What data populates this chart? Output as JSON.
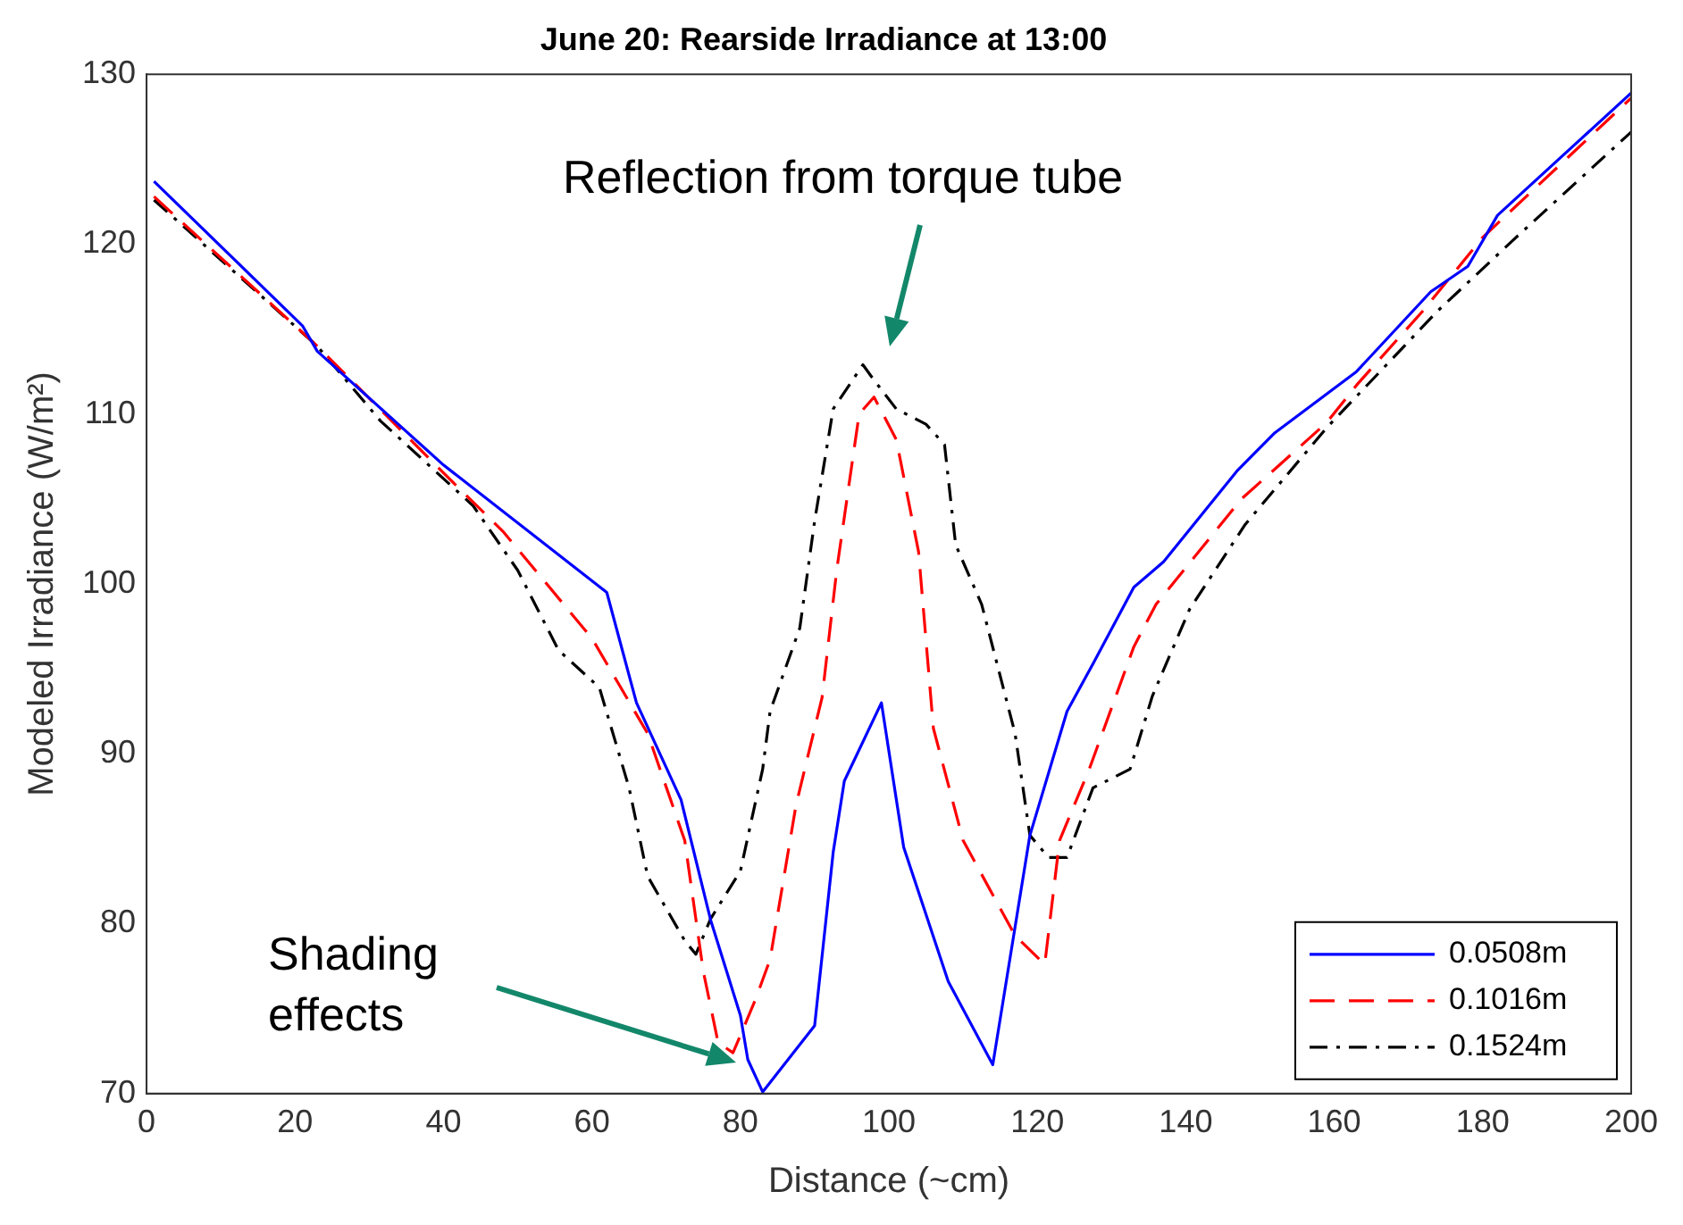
{
  "chart_data": {
    "type": "line",
    "title": "June 20: Rearside Irradiance at 13:00",
    "xlabel": "Distance (~cm)",
    "ylabel": "Modeled Irradiance (W/m²)",
    "xlim": [
      0,
      200
    ],
    "xticks": [
      0,
      20,
      40,
      60,
      80,
      100,
      120,
      140,
      160,
      180,
      200
    ],
    "ylim": [
      70,
      130
    ],
    "yticks": [
      70,
      80,
      90,
      100,
      110,
      120,
      130
    ],
    "grid": false,
    "legend": "bottom right",
    "marker": "none",
    "annotations": [
      "Reflection from torque tube",
      "Shading effects"
    ],
    "series": [
      {
        "name": "0.0508m",
        "color": "#0000ff",
        "line_style": "solid",
        "x": [
          1,
          21,
          23,
          40,
          62,
          66,
          72,
          76,
          80,
          81,
          83,
          90,
          92.5,
          94,
          99,
          102,
          108,
          114,
          119,
          124,
          127.5,
          133,
          137,
          147,
          152,
          163,
          173,
          178,
          182,
          193,
          200
        ],
        "values": [
          123.7,
          115.2,
          113.7,
          107,
          99.5,
          93,
          87.3,
          80.2,
          74.6,
          72,
          70.1,
          74,
          84.2,
          88.4,
          93,
          84.5,
          76.6,
          71.7,
          85.2,
          92.5,
          95.3,
          99.8,
          101.3,
          106.7,
          108.9,
          112.5,
          117.2,
          118.7,
          121.7,
          126.1,
          128.9
        ]
      },
      {
        "name": "0.1016m",
        "color": "#ff0000",
        "line_style": "dashed",
        "x": [
          1,
          23,
          41,
          48,
          60,
          67.5,
          72.5,
          75,
          77,
          79,
          82,
          84,
          87.5,
          91,
          93,
          96,
          98,
          101,
          104,
          106,
          110,
          117,
          121,
          123,
          127,
          133,
          136,
          147.5,
          159,
          163,
          172,
          180,
          200
        ],
        "values": [
          122.8,
          114,
          106.1,
          103.1,
          96.8,
          91.2,
          84.9,
          77.2,
          73,
          72.4,
          75.5,
          77.9,
          87,
          93.3,
          100.9,
          110,
          111,
          108.5,
          101.9,
          91.5,
          84.9,
          79.3,
          77.6,
          84.9,
          89.1,
          96.3,
          98.8,
          105,
          109.5,
          111.7,
          116.1,
          120.4,
          128.6
        ]
      },
      {
        "name": "0.1524m",
        "color": "#000000",
        "line_style": "dashdot",
        "x": [
          1,
          23,
          31.5,
          44,
          50,
          55.5,
          61,
          65,
          67.5,
          72.5,
          74,
          76,
          80,
          83,
          84,
          88,
          90,
          92.5,
          96.5,
          98,
          101,
          105,
          107.5,
          109,
          112.5,
          117,
          119,
          121.5,
          124,
          127.5,
          132.5,
          135.5,
          140.5,
          148,
          159,
          174,
          184.5,
          200
        ],
        "values": [
          122.6,
          114,
          109.6,
          104.6,
          100.8,
          96.1,
          93.9,
          88,
          82.8,
          79,
          78.2,
          80.3,
          83.1,
          89.1,
          92.5,
          97.4,
          103.7,
          110.3,
          112.9,
          112,
          110.3,
          109.4,
          108.2,
          102.3,
          98.8,
          91.2,
          85.2,
          83.9,
          83.9,
          88,
          89.1,
          93.4,
          98.5,
          103.5,
          109.2,
          116.1,
          120.4,
          126.6
        ]
      }
    ]
  }
}
